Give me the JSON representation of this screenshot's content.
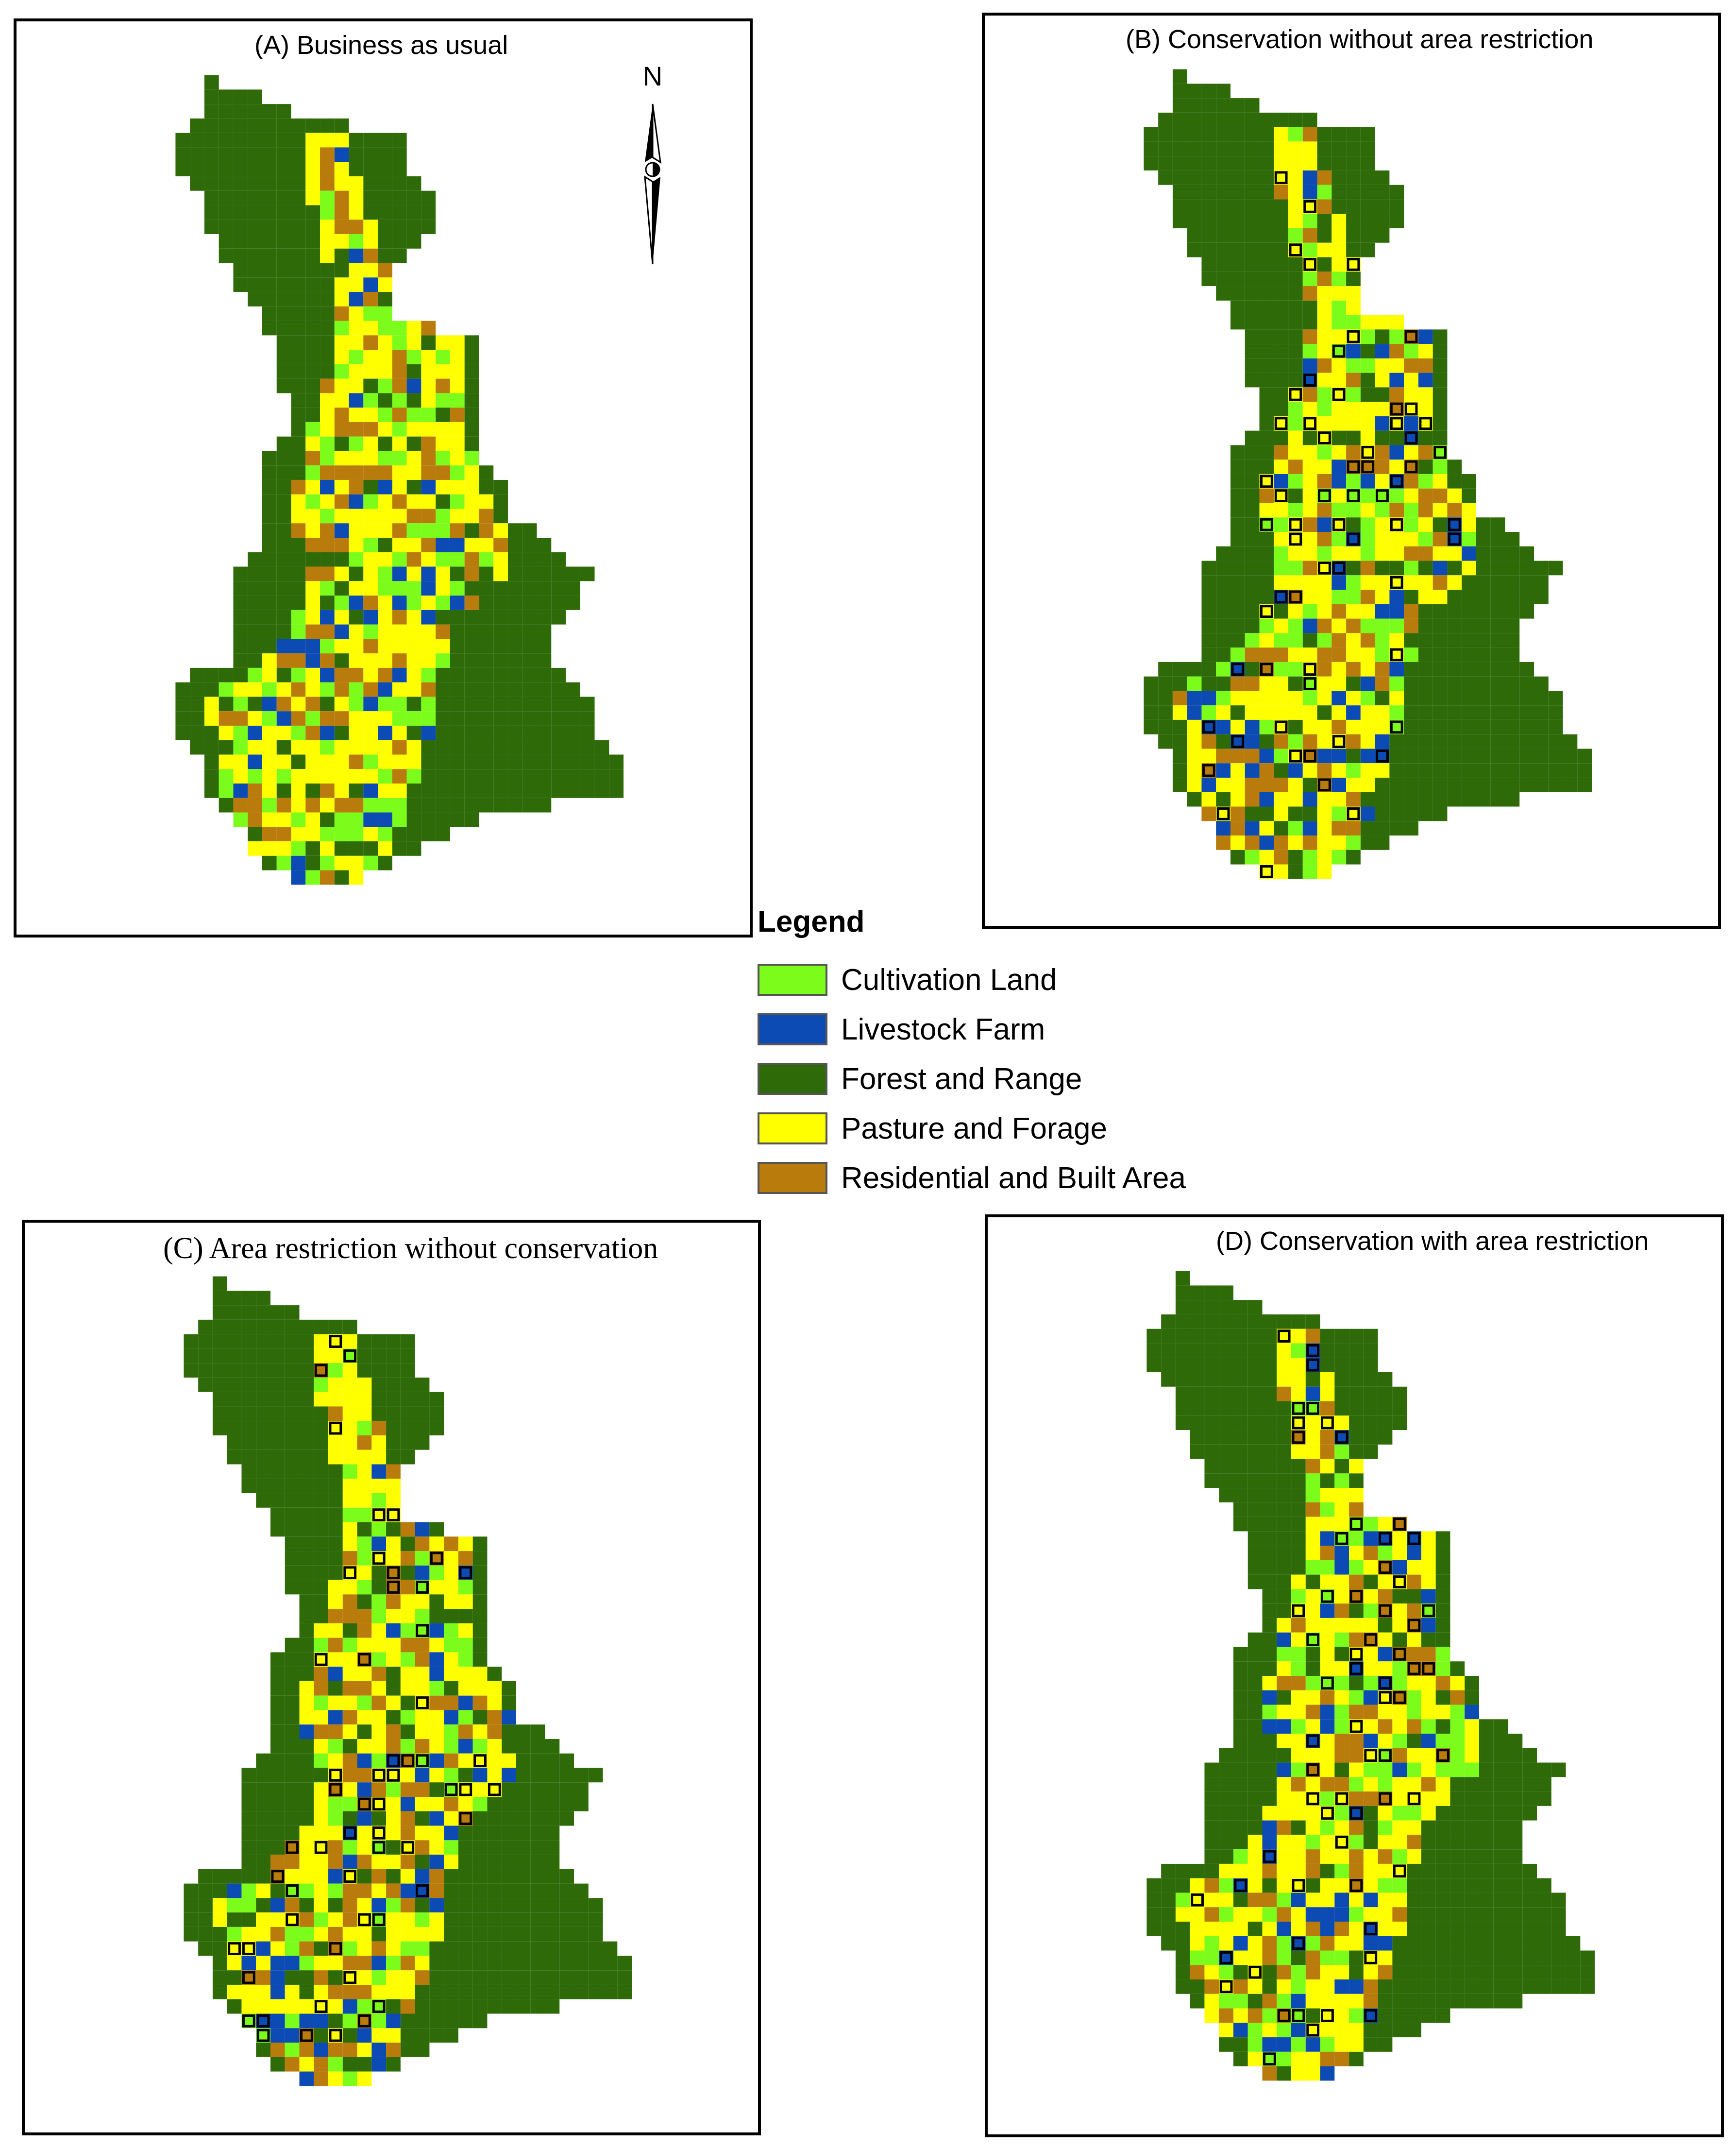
{
  "colors": {
    "cultivation": "#7cfc1a",
    "livestock": "#0b4bb3",
    "forest": "#2e6b08",
    "pasture": "#ffff00",
    "residential": "#b87b0c",
    "outline": "#000000"
  },
  "panels": [
    {
      "id": "a",
      "title": "(A) Business as usual",
      "outlined_patches": false
    },
    {
      "id": "b",
      "title": "(B) Conservation without area restriction",
      "outlined_patches": true
    },
    {
      "id": "c",
      "title": "(C) Area restriction without conservation",
      "outlined_patches": true
    },
    {
      "id": "d",
      "title": "(D) Conservation with area restriction",
      "outlined_patches": true
    }
  ],
  "north_arrow": {
    "label": "N",
    "icon": "north-arrow-icon"
  },
  "legend": {
    "title": "Legend",
    "items": [
      {
        "key": "cultivation",
        "label": "Cultivation Land"
      },
      {
        "key": "livestock",
        "label": "Livestock Farm"
      },
      {
        "key": "forest",
        "label": "Forest and Range"
      },
      {
        "key": "pasture",
        "label": "Pasture and Forage"
      },
      {
        "key": "residential",
        "label": "Residential and Built Area"
      }
    ]
  }
}
